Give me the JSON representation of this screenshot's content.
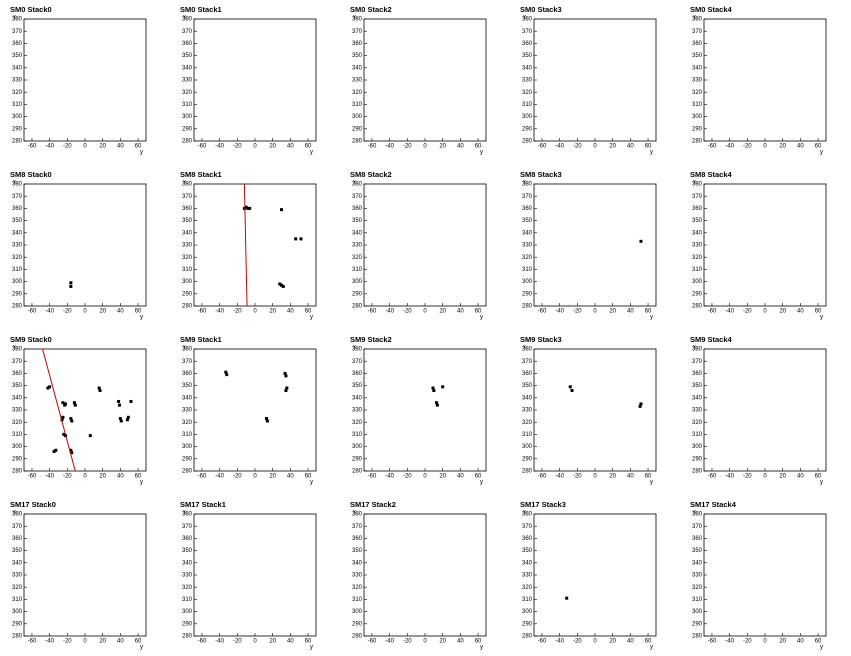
{
  "chart_data": [
    {
      "type": "scatter",
      "title": "SM0 Stack0",
      "xlabel": "y",
      "ylabel": "x",
      "xlim": [
        -69,
        69
      ],
      "ylim": [
        280,
        380
      ],
      "xticks": [
        -60,
        -40,
        -20,
        0,
        20,
        40,
        60
      ],
      "yticks": [
        280,
        290,
        300,
        310,
        320,
        330,
        340,
        350,
        360,
        370,
        380
      ],
      "series": []
    },
    {
      "type": "scatter",
      "title": "SM0 Stack1",
      "xlabel": "y",
      "ylabel": "x",
      "xlim": [
        -69,
        69
      ],
      "ylim": [
        280,
        380
      ],
      "xticks": [
        -60,
        -40,
        -20,
        0,
        20,
        40,
        60
      ],
      "yticks": [
        280,
        290,
        300,
        310,
        320,
        330,
        340,
        350,
        360,
        370,
        380
      ],
      "series": []
    },
    {
      "type": "scatter",
      "title": "SM0 Stack2",
      "xlabel": "y",
      "ylabel": "x",
      "xlim": [
        -69,
        69
      ],
      "ylim": [
        280,
        380
      ],
      "xticks": [
        -60,
        -40,
        -20,
        0,
        20,
        40,
        60
      ],
      "yticks": [
        280,
        290,
        300,
        310,
        320,
        330,
        340,
        350,
        360,
        370,
        380
      ],
      "series": []
    },
    {
      "type": "scatter",
      "title": "SM0 Stack3",
      "xlabel": "y",
      "ylabel": "x",
      "xlim": [
        -69,
        69
      ],
      "ylim": [
        280,
        380
      ],
      "xticks": [
        -60,
        -40,
        -20,
        0,
        20,
        40,
        60
      ],
      "yticks": [
        280,
        290,
        300,
        310,
        320,
        330,
        340,
        350,
        360,
        370,
        380
      ],
      "series": []
    },
    {
      "type": "scatter",
      "title": "SM0 Stack4",
      "xlabel": "y",
      "ylabel": "x",
      "xlim": [
        -69,
        69
      ],
      "ylim": [
        280,
        380
      ],
      "xticks": [
        -60,
        -40,
        -20,
        0,
        20,
        40,
        60
      ],
      "yticks": [
        280,
        290,
        300,
        310,
        320,
        330,
        340,
        350,
        360,
        370,
        380
      ],
      "series": []
    },
    {
      "type": "scatter",
      "title": "SM8 Stack0",
      "xlabel": "y",
      "ylabel": "x",
      "xlim": [
        -69,
        69
      ],
      "ylim": [
        280,
        380
      ],
      "xticks": [
        -60,
        -40,
        -20,
        0,
        20,
        40,
        60
      ],
      "yticks": [
        280,
        290,
        300,
        310,
        320,
        330,
        340,
        350,
        360,
        370,
        380
      ],
      "series": [
        {
          "color": "#000000",
          "x": [
            -16,
            -16
          ],
          "y": [
            296,
            299
          ]
        }
      ]
    },
    {
      "type": "scatter",
      "title": "SM8 Stack1",
      "xlabel": "y",
      "ylabel": "x",
      "xlim": [
        -69,
        69
      ],
      "ylim": [
        280,
        380
      ],
      "xticks": [
        -60,
        -40,
        -20,
        0,
        20,
        40,
        60
      ],
      "yticks": [
        280,
        290,
        300,
        310,
        320,
        330,
        340,
        350,
        360,
        370,
        380
      ],
      "series": [
        {
          "color": "#000000",
          "x": [
            -12,
            -10,
            -8,
            -6,
            30,
            46,
            52,
            28,
            30,
            32
          ],
          "y": [
            360,
            361,
            360,
            360,
            359,
            335,
            335,
            298,
            297,
            296
          ]
        }
      ],
      "lines": [
        {
          "color": "#cc0000",
          "x": [
            -12,
            -9
          ],
          "y": [
            380,
            280
          ]
        }
      ]
    },
    {
      "type": "scatter",
      "title": "SM8 Stack2",
      "xlabel": "y",
      "ylabel": "x",
      "xlim": [
        -69,
        69
      ],
      "ylim": [
        280,
        380
      ],
      "xticks": [
        -60,
        -40,
        -20,
        0,
        20,
        40,
        60
      ],
      "yticks": [
        280,
        290,
        300,
        310,
        320,
        330,
        340,
        350,
        360,
        370,
        380
      ],
      "series": []
    },
    {
      "type": "scatter",
      "title": "SM8 Stack3",
      "xlabel": "y",
      "ylabel": "x",
      "xlim": [
        -69,
        69
      ],
      "ylim": [
        280,
        380
      ],
      "xticks": [
        -60,
        -40,
        -20,
        0,
        20,
        40,
        60
      ],
      "yticks": [
        280,
        290,
        300,
        310,
        320,
        330,
        340,
        350,
        360,
        370,
        380
      ],
      "series": [
        {
          "color": "#000000",
          "x": [
            52
          ],
          "y": [
            333
          ]
        }
      ]
    },
    {
      "type": "scatter",
      "title": "SM8 Stack4",
      "xlabel": "y",
      "ylabel": "x",
      "xlim": [
        -69,
        69
      ],
      "ylim": [
        280,
        380
      ],
      "xticks": [
        -60,
        -40,
        -20,
        0,
        20,
        40,
        60
      ],
      "yticks": [
        280,
        290,
        300,
        310,
        320,
        330,
        340,
        350,
        360,
        370,
        380
      ],
      "series": []
    },
    {
      "type": "scatter",
      "title": "SM9 Stack0",
      "xlabel": "y",
      "ylabel": "x",
      "xlim": [
        -69,
        69
      ],
      "ylim": [
        280,
        380
      ],
      "xticks": [
        -60,
        -40,
        -20,
        0,
        20,
        40,
        60
      ],
      "yticks": [
        280,
        290,
        300,
        310,
        320,
        330,
        340,
        350,
        360,
        370,
        380
      ],
      "series": [
        {
          "color": "#000000",
          "x": [
            -42,
            -40,
            -25,
            -23,
            -22,
            -12,
            -11,
            16,
            17,
            38,
            39,
            52,
            -26,
            -25,
            -16,
            -15,
            40,
            41,
            48,
            49,
            -24,
            -22,
            6,
            -35,
            -33,
            -16,
            -15
          ],
          "y": [
            348,
            349,
            336,
            334,
            335,
            336,
            334,
            348,
            346,
            337,
            334,
            337,
            322,
            324,
            323,
            321,
            323,
            321,
            322,
            324,
            310,
            309,
            309,
            296,
            297,
            297,
            295
          ]
        }
      ],
      "lines": [
        {
          "color": "#cc0000",
          "x": [
            -48,
            -11
          ],
          "y": [
            380,
            280
          ]
        }
      ]
    },
    {
      "type": "scatter",
      "title": "SM9 Stack1",
      "xlabel": "y",
      "ylabel": "x",
      "xlim": [
        -69,
        69
      ],
      "ylim": [
        280,
        380
      ],
      "xticks": [
        -60,
        -40,
        -20,
        0,
        20,
        40,
        60
      ],
      "yticks": [
        280,
        290,
        300,
        310,
        320,
        330,
        340,
        350,
        360,
        370,
        380
      ],
      "series": [
        {
          "color": "#000000",
          "x": [
            -33,
            -32,
            34,
            35,
            36,
            35,
            13,
            14
          ],
          "y": [
            361,
            359,
            360,
            358,
            348,
            346,
            323,
            321
          ]
        }
      ]
    },
    {
      "type": "scatter",
      "title": "SM9 Stack2",
      "xlabel": "y",
      "ylabel": "x",
      "xlim": [
        -69,
        69
      ],
      "ylim": [
        280,
        380
      ],
      "xticks": [
        -60,
        -40,
        -20,
        0,
        20,
        40,
        60
      ],
      "yticks": [
        280,
        290,
        300,
        310,
        320,
        330,
        340,
        350,
        360,
        370,
        380
      ],
      "series": [
        {
          "color": "#000000",
          "x": [
            9,
            10,
            20,
            13,
            14
          ],
          "y": [
            348,
            346,
            349,
            336,
            334
          ]
        }
      ]
    },
    {
      "type": "scatter",
      "title": "SM9 Stack3",
      "xlabel": "y",
      "ylabel": "x",
      "xlim": [
        -69,
        69
      ],
      "ylim": [
        280,
        380
      ],
      "xticks": [
        -60,
        -40,
        -20,
        0,
        20,
        40,
        60
      ],
      "yticks": [
        280,
        290,
        300,
        310,
        320,
        330,
        340,
        350,
        360,
        370,
        380
      ],
      "series": [
        {
          "color": "#000000",
          "x": [
            -28,
            -26,
            52,
            51
          ],
          "y": [
            349,
            346,
            335,
            333
          ]
        }
      ]
    },
    {
      "type": "scatter",
      "title": "SM9 Stack4",
      "xlabel": "y",
      "ylabel": "x",
      "xlim": [
        -69,
        69
      ],
      "ylim": [
        280,
        380
      ],
      "xticks": [
        -60,
        -40,
        -20,
        0,
        20,
        40,
        60
      ],
      "yticks": [
        280,
        290,
        300,
        310,
        320,
        330,
        340,
        350,
        360,
        370,
        380
      ],
      "series": []
    },
    {
      "type": "scatter",
      "title": "SM17 Stack0",
      "xlabel": "y",
      "ylabel": "x",
      "xlim": [
        -69,
        69
      ],
      "ylim": [
        280,
        380
      ],
      "xticks": [
        -60,
        -40,
        -20,
        0,
        20,
        40,
        60
      ],
      "yticks": [
        280,
        290,
        300,
        310,
        320,
        330,
        340,
        350,
        360,
        370,
        380
      ],
      "series": []
    },
    {
      "type": "scatter",
      "title": "SM17 Stack1",
      "xlabel": "y",
      "ylabel": "x",
      "xlim": [
        -69,
        69
      ],
      "ylim": [
        280,
        380
      ],
      "xticks": [
        -60,
        -40,
        -20,
        0,
        20,
        40,
        60
      ],
      "yticks": [
        280,
        290,
        300,
        310,
        320,
        330,
        340,
        350,
        360,
        370,
        380
      ],
      "series": []
    },
    {
      "type": "scatter",
      "title": "SM17 Stack2",
      "xlabel": "y",
      "ylabel": "x",
      "xlim": [
        -69,
        69
      ],
      "ylim": [
        280,
        380
      ],
      "xticks": [
        -60,
        -40,
        -20,
        0,
        20,
        40,
        60
      ],
      "yticks": [
        280,
        290,
        300,
        310,
        320,
        330,
        340,
        350,
        360,
        370,
        380
      ],
      "series": []
    },
    {
      "type": "scatter",
      "title": "SM17 Stack3",
      "xlabel": "y",
      "ylabel": "x",
      "xlim": [
        -69,
        69
      ],
      "ylim": [
        280,
        380
      ],
      "xticks": [
        -60,
        -40,
        -20,
        0,
        20,
        40,
        60
      ],
      "yticks": [
        280,
        290,
        300,
        310,
        320,
        330,
        340,
        350,
        360,
        370,
        380
      ],
      "series": [
        {
          "color": "#000000",
          "x": [
            -32
          ],
          "y": [
            311
          ]
        }
      ]
    },
    {
      "type": "scatter",
      "title": "SM17 Stack4",
      "xlabel": "y",
      "ylabel": "x",
      "xlim": [
        -69,
        69
      ],
      "ylim": [
        280,
        380
      ],
      "xticks": [
        -60,
        -40,
        -20,
        0,
        20,
        40,
        60
      ],
      "yticks": [
        280,
        290,
        300,
        310,
        320,
        330,
        340,
        350,
        360,
        370,
        380
      ],
      "series": []
    }
  ]
}
